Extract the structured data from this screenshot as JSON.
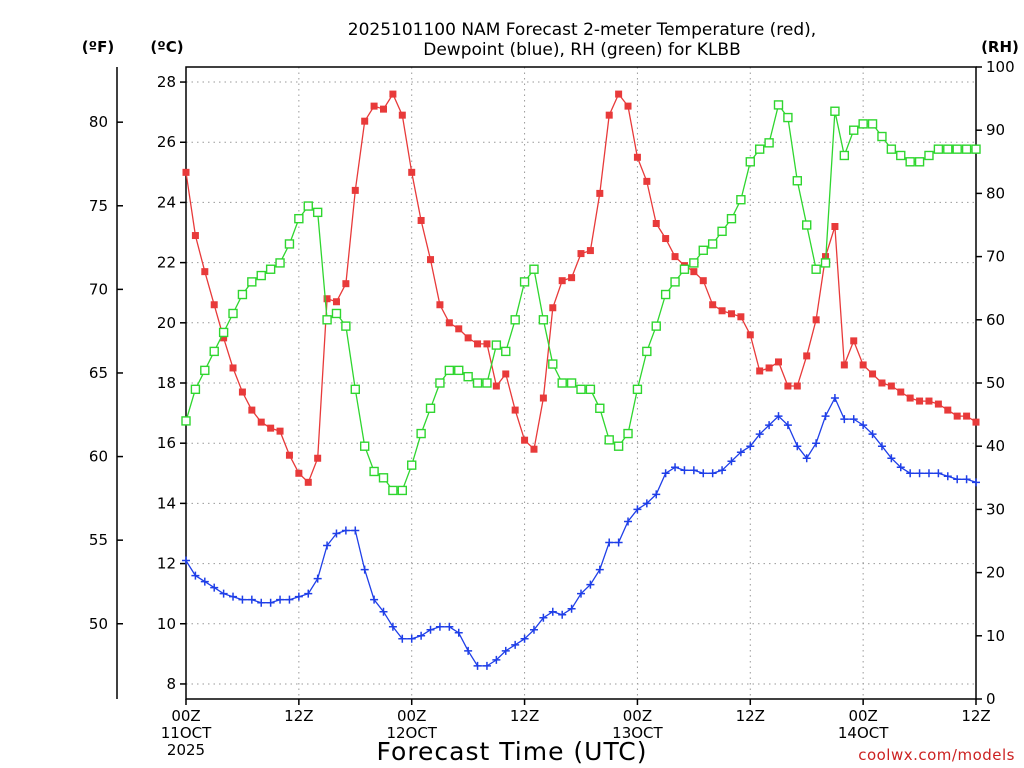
{
  "chart_data": {
    "type": "line",
    "title": [
      "2025101100 NAM Forecast 2-meter Temperature (red),",
      "Dewpoint (blue), RH (green) for KLBB"
    ],
    "xlabel": "Forecast Time (UTC)",
    "credit": "coolwx.com/models",
    "unit_labels": {
      "fahrenheit": "(ºF)",
      "celsius": "(ºC)",
      "rh": "(RH)"
    },
    "x_unit": "forecast hour",
    "xlim": [
      0,
      84
    ],
    "x_ticks": [
      {
        "hour": 0,
        "lines": [
          "00Z",
          "11OCT",
          "2025"
        ]
      },
      {
        "hour": 12,
        "lines": [
          "12Z"
        ]
      },
      {
        "hour": 24,
        "lines": [
          "00Z",
          "12OCT"
        ]
      },
      {
        "hour": 36,
        "lines": [
          "12Z"
        ]
      },
      {
        "hour": 48,
        "lines": [
          "00Z",
          "13OCT"
        ]
      },
      {
        "hour": 60,
        "lines": [
          "12Z"
        ]
      },
      {
        "hour": 72,
        "lines": [
          "00Z",
          "14OCT"
        ]
      },
      {
        "hour": 84,
        "lines": [
          "12Z"
        ]
      }
    ],
    "y_celsius": {
      "ylim": [
        7.5,
        28.5
      ],
      "ticks": [
        8,
        10,
        12,
        14,
        16,
        18,
        20,
        22,
        24,
        26,
        28
      ]
    },
    "y_fahrenheit": {
      "ticks": [
        50,
        55,
        60,
        65,
        70,
        75,
        80
      ]
    },
    "y_rh": {
      "ylim": [
        0,
        100
      ],
      "ticks": [
        0,
        10,
        20,
        30,
        40,
        50,
        60,
        70,
        80,
        90,
        100
      ]
    },
    "x": [
      0,
      1,
      2,
      3,
      4,
      5,
      6,
      7,
      8,
      9,
      10,
      11,
      12,
      13,
      14,
      15,
      16,
      17,
      18,
      19,
      20,
      21,
      22,
      23,
      24,
      25,
      26,
      27,
      28,
      29,
      30,
      31,
      32,
      33,
      34,
      35,
      36,
      37,
      38,
      39,
      40,
      41,
      42,
      43,
      44,
      45,
      46,
      47,
      48,
      49,
      50,
      51,
      52,
      53,
      54,
      55,
      56,
      57,
      58,
      59,
      60,
      61,
      62,
      63,
      64,
      65,
      66,
      67,
      68,
      69,
      70,
      71,
      72,
      73,
      74,
      75,
      76,
      77,
      78,
      79,
      80,
      81,
      82,
      83,
      84
    ],
    "series": [
      {
        "name": "Temperature",
        "axis": "celsius",
        "color": "#e83a3a",
        "marker": "filled-square",
        "values": [
          25.0,
          22.9,
          21.7,
          20.6,
          19.5,
          18.5,
          17.7,
          17.1,
          16.7,
          16.5,
          16.4,
          15.6,
          15.0,
          14.7,
          15.5,
          20.8,
          20.7,
          21.3,
          24.4,
          26.7,
          27.2,
          27.1,
          27.6,
          26.9,
          25.0,
          23.4,
          22.1,
          20.6,
          20.0,
          19.8,
          19.5,
          19.3,
          19.3,
          17.9,
          18.3,
          17.1,
          16.1,
          15.8,
          17.5,
          20.5,
          21.4,
          21.5,
          22.3,
          22.4,
          24.3,
          26.9,
          27.6,
          27.2,
          25.5,
          24.7,
          23.3,
          22.8,
          22.2,
          21.9,
          21.7,
          21.4,
          20.6,
          20.4,
          20.3,
          20.2,
          19.6,
          18.4,
          18.5,
          18.7,
          17.9,
          17.9,
          18.9,
          20.1,
          22.2,
          23.2,
          18.6,
          19.4,
          18.6,
          18.3,
          18.0,
          17.9,
          17.7,
          17.5,
          17.4,
          17.4,
          17.3,
          17.1,
          16.9,
          16.9,
          16.7
        ]
      },
      {
        "name": "Dewpoint",
        "axis": "celsius",
        "color": "#1f3fe8",
        "marker": "plus",
        "values": [
          12.1,
          11.6,
          11.4,
          11.2,
          11.0,
          10.9,
          10.8,
          10.8,
          10.7,
          10.7,
          10.8,
          10.8,
          10.9,
          11.0,
          11.5,
          12.6,
          13.0,
          13.1,
          13.1,
          11.8,
          10.8,
          10.4,
          9.9,
          9.5,
          9.5,
          9.6,
          9.8,
          9.9,
          9.9,
          9.7,
          9.1,
          8.6,
          8.6,
          8.8,
          9.1,
          9.3,
          9.5,
          9.8,
          10.2,
          10.4,
          10.3,
          10.5,
          11.0,
          11.3,
          11.8,
          12.7,
          12.7,
          13.4,
          13.8,
          14.0,
          14.3,
          15.0,
          15.2,
          15.1,
          15.1,
          15.0,
          15.0,
          15.1,
          15.4,
          15.7,
          15.9,
          16.3,
          16.6,
          16.9,
          16.6,
          15.9,
          15.5,
          16.0,
          16.9,
          17.5,
          16.8,
          16.8,
          16.6,
          16.3,
          15.9,
          15.5,
          15.2,
          15.0,
          15.0,
          15.0,
          15.0,
          14.9,
          14.8,
          14.8,
          14.7
        ]
      },
      {
        "name": "RH",
        "axis": "rh",
        "color": "#2fd62f",
        "marker": "open-square",
        "values": [
          44,
          49,
          52,
          55,
          58,
          61,
          64,
          66,
          67,
          68,
          69,
          72,
          76,
          78,
          77,
          60,
          61,
          59,
          49,
          40,
          36,
          35,
          33,
          33,
          37,
          42,
          46,
          50,
          52,
          52,
          51,
          50,
          50,
          56,
          55,
          60,
          66,
          68,
          60,
          53,
          50,
          50,
          49,
          49,
          46,
          41,
          40,
          42,
          49,
          55,
          59,
          64,
          66,
          68,
          69,
          71,
          72,
          74,
          76,
          79,
          85,
          87,
          88,
          94,
          92,
          82,
          75,
          68,
          69,
          93,
          86,
          90,
          91,
          91,
          89,
          87,
          86,
          85,
          85,
          86,
          87,
          87,
          87,
          87,
          87
        ]
      }
    ]
  }
}
